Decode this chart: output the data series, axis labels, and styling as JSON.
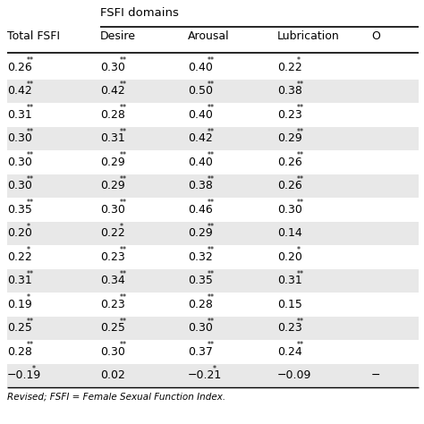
{
  "title": "FSFI domains",
  "columns": [
    "Total FSFI",
    "Desire",
    "Arousal",
    "Lubrication",
    "O"
  ],
  "rows": [
    [
      "0.26**",
      "0.30**",
      "0.40**",
      "0.22*",
      ""
    ],
    [
      "0.42**",
      "0.42**",
      "0.50**",
      "0.38**",
      ""
    ],
    [
      "0.31**",
      "0.28**",
      "0.40**",
      "0.23**",
      ""
    ],
    [
      "0.30**",
      "0.31**",
      "0.42**",
      "0.29**",
      ""
    ],
    [
      "0.30**",
      "0.29**",
      "0.40**",
      "0.26**",
      ""
    ],
    [
      "0.30**",
      "0.29**",
      "0.38**",
      "0.26**",
      ""
    ],
    [
      "0.35**",
      "0.30**",
      "0.46**",
      "0.30**",
      ""
    ],
    [
      "0.20*",
      "0.22*",
      "0.29**",
      "0.14",
      ""
    ],
    [
      "0.22*",
      "0.23**",
      "0.32**",
      "0.20*",
      ""
    ],
    [
      "0.31**",
      "0.34**",
      "0.35**",
      "0.31**",
      ""
    ],
    [
      "0.19*",
      "0.23**",
      "0.28**",
      "0.15",
      ""
    ],
    [
      "0.25**",
      "0.25**",
      "0.30**",
      "0.23**",
      ""
    ],
    [
      "0.28**",
      "0.30**",
      "0.37**",
      "0.24**",
      ""
    ],
    [
      "−0.19*",
      "0.02",
      "−0.21*",
      "−0.09",
      "−"
    ]
  ],
  "shaded_rows": [
    1,
    3,
    5,
    7,
    9,
    11,
    13
  ],
  "shade_color": "#e8e8e8",
  "bg_color": "#ffffff",
  "footnote": "Revised; FSFI = Female Sexual Function Index.",
  "font_size": 9.0,
  "title_font_size": 9.5
}
